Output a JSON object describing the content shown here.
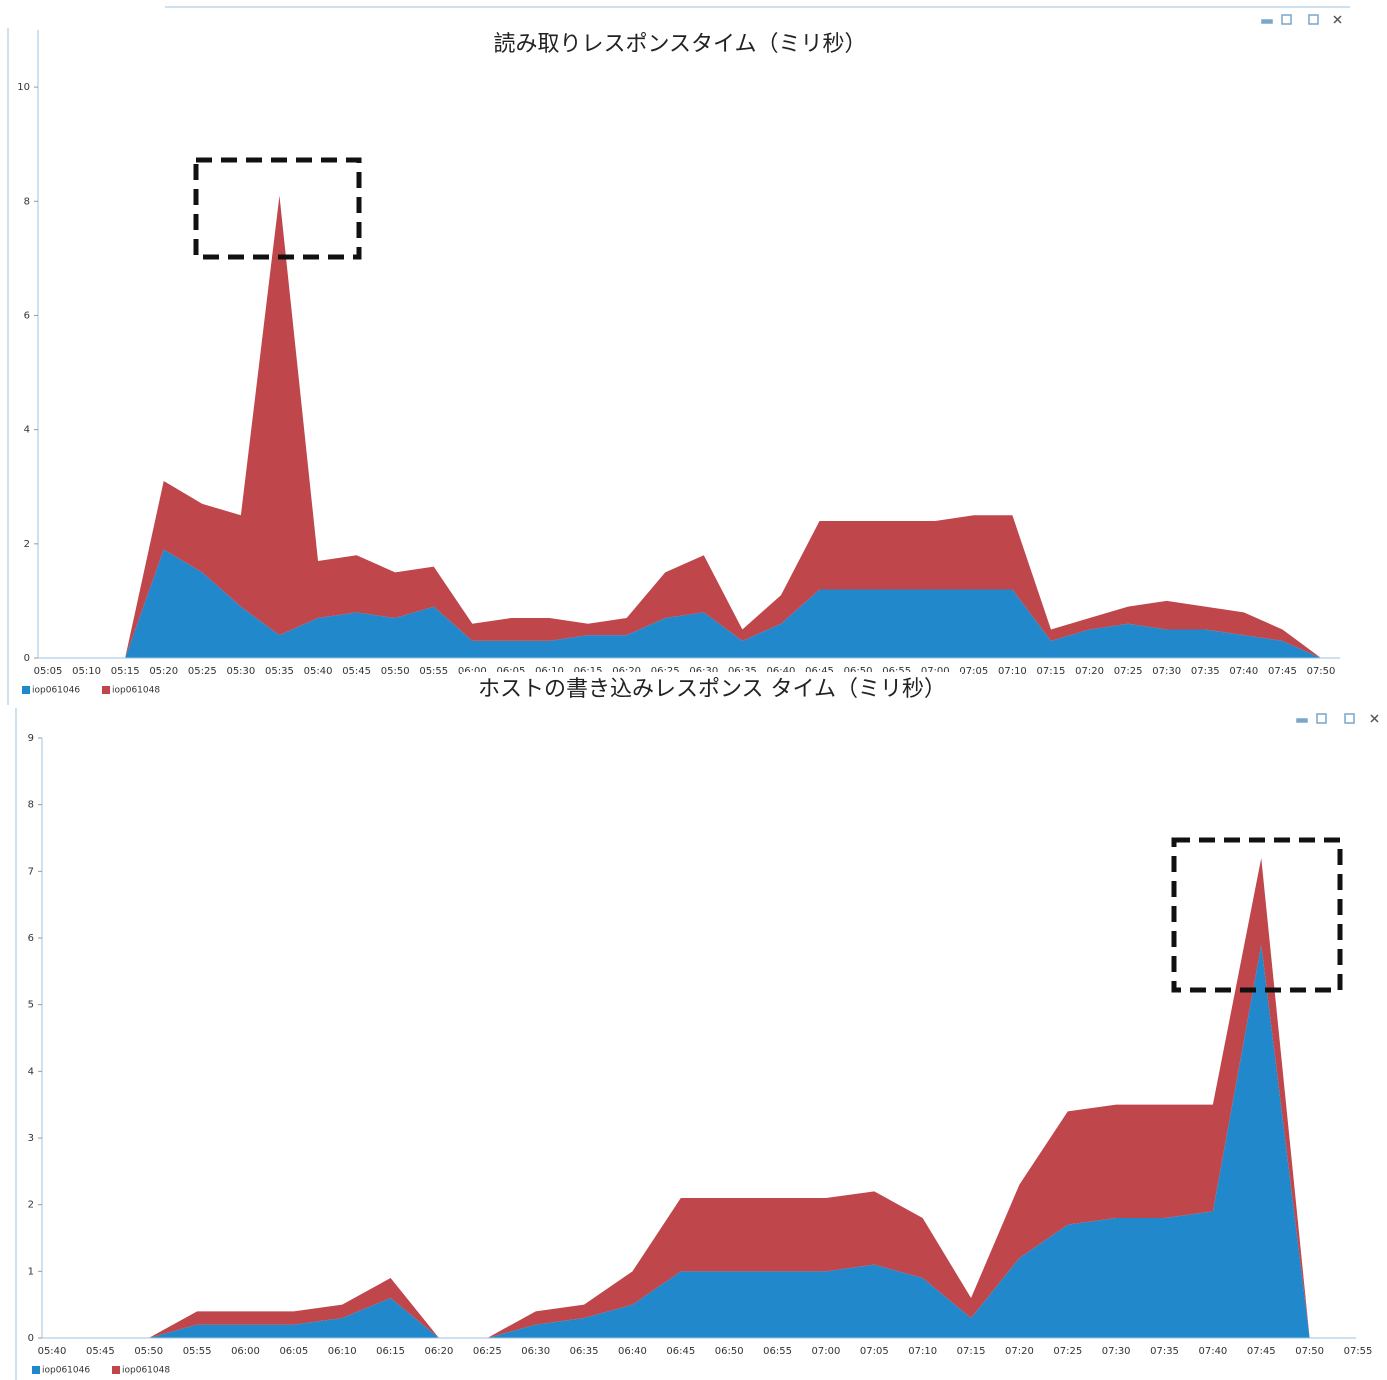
{
  "chart_data": [
    {
      "type": "area",
      "stacked": true,
      "title": "読み取りレスポンスタイム（ミリ秒）",
      "categories": [
        "05:05",
        "05:10",
        "05:15",
        "05:20",
        "05:25",
        "05:30",
        "05:35",
        "05:40",
        "05:45",
        "05:50",
        "05:55",
        "06:00",
        "06:05",
        "06:10",
        "06:15",
        "06:20",
        "06:25",
        "06:30",
        "06:35",
        "06:40",
        "06:45",
        "06:50",
        "06:55",
        "07:00",
        "07:05",
        "07:10",
        "07:15",
        "07:20",
        "07:25",
        "07:30",
        "07:35",
        "07:40",
        "07:45",
        "07:50"
      ],
      "series": [
        {
          "name": "iop061046",
          "color": "#2189cb",
          "values": [
            0,
            0,
            0,
            1.9,
            1.5,
            0.9,
            0.4,
            0.7,
            0.8,
            0.7,
            0.9,
            0.3,
            0.3,
            0.3,
            0.4,
            0.4,
            0.7,
            0.8,
            0.3,
            0.6,
            1.2,
            1.2,
            1.2,
            1.2,
            1.2,
            1.2,
            0.3,
            0.5,
            0.6,
            0.5,
            0.5,
            0.4,
            0.3,
            0
          ]
        },
        {
          "name": "iop061048",
          "color": "#bf464b",
          "values": [
            0,
            0,
            0,
            1.2,
            1.2,
            1.6,
            7.7,
            1.0,
            1.0,
            0.8,
            0.7,
            0.3,
            0.4,
            0.4,
            0.2,
            0.3,
            0.8,
            1.0,
            0.2,
            0.5,
            1.2,
            1.2,
            1.2,
            1.2,
            1.3,
            1.3,
            0.2,
            0.2,
            0.3,
            0.5,
            0.4,
            0.4,
            0.2,
            0
          ]
        }
      ],
      "ylim": [
        0,
        11
      ],
      "yticks": [
        0,
        2,
        4,
        6,
        8,
        10
      ],
      "grid": false,
      "legend": "bottom-left"
    },
    {
      "type": "area",
      "stacked": true,
      "title": "ホストの書き込みレスポンス タイム（ミリ秒）",
      "categories": [
        "05:40",
        "05:45",
        "05:50",
        "05:55",
        "06:00",
        "06:05",
        "06:10",
        "06:15",
        "06:20",
        "06:25",
        "06:30",
        "06:35",
        "06:40",
        "06:45",
        "06:50",
        "06:55",
        "07:00",
        "07:05",
        "07:10",
        "07:15",
        "07:20",
        "07:25",
        "07:30",
        "07:35",
        "07:40",
        "07:45",
        "07:50",
        "07:55"
      ],
      "series": [
        {
          "name": "iop061046",
          "color": "#2189cb",
          "values": [
            0,
            0,
            0,
            0.2,
            0.2,
            0.2,
            0.3,
            0.6,
            0,
            0,
            0.2,
            0.3,
            0.5,
            1.0,
            1.0,
            1.0,
            1.0,
            1.1,
            0.9,
            0.3,
            1.2,
            1.7,
            1.8,
            1.8,
            1.9,
            5.9,
            0,
            null
          ]
        },
        {
          "name": "iop061048",
          "color": "#bf464b",
          "values": [
            0,
            0,
            0,
            0.2,
            0.2,
            0.2,
            0.2,
            0.3,
            0,
            0,
            0.2,
            0.2,
            0.5,
            1.1,
            1.1,
            1.1,
            1.1,
            1.1,
            0.9,
            0.3,
            1.1,
            1.7,
            1.7,
            1.7,
            1.6,
            1.3,
            0,
            null
          ]
        }
      ],
      "ylim": [
        0,
        9
      ],
      "yticks": [
        0,
        1,
        2,
        3,
        4,
        5,
        6,
        7,
        8,
        9
      ],
      "grid": false,
      "legend": "bottom-left"
    }
  ]
}
